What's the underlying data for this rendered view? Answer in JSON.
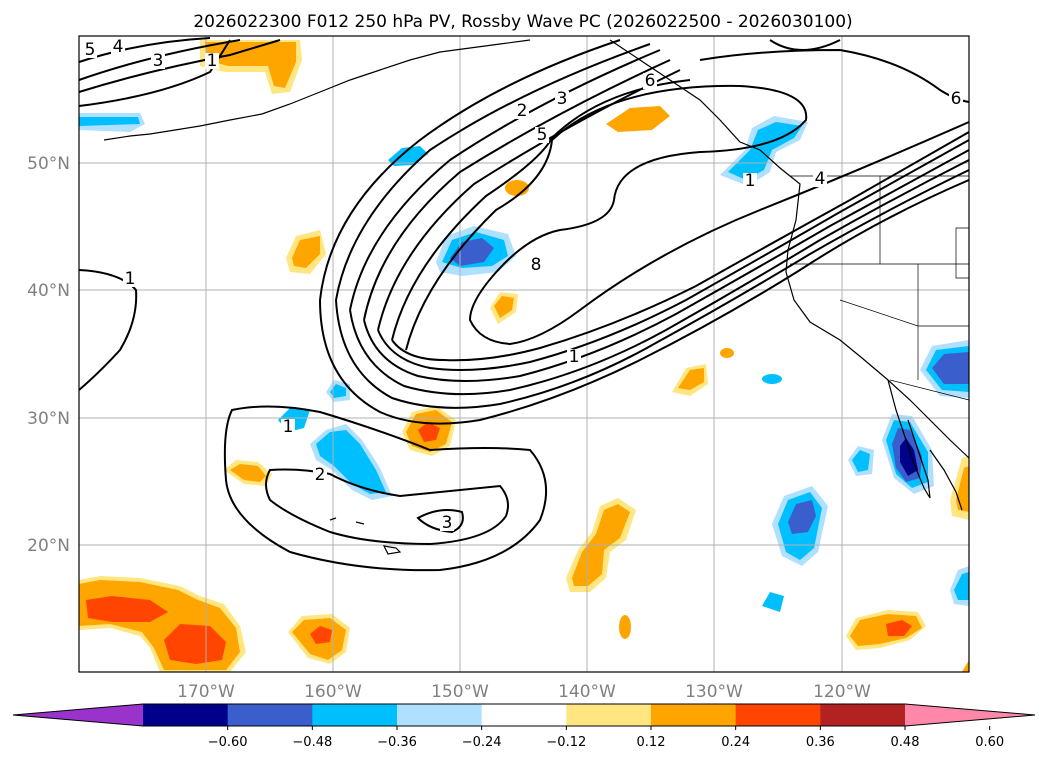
{
  "chart_data": {
    "type": "contour-map",
    "title": "2026022300 F012 250 hPa PV, Rossby Wave PC (2026022500 - 2026030100)",
    "map_extent": {
      "lon": [
        -180,
        -110
      ],
      "lat": [
        10,
        60
      ]
    },
    "gridlines": true,
    "lat_ticks": [
      "20°N",
      "30°N",
      "40°N",
      "50°N"
    ],
    "lon_ticks": [
      "170°W",
      "160°W",
      "150°W",
      "140°W",
      "130°W",
      "120°W"
    ],
    "pv_contour_labels": [
      "5",
      "4",
      "3",
      "1",
      "2",
      "3",
      "6",
      "5",
      "8",
      "1",
      "1",
      "1",
      "4",
      "6",
      "1",
      "2",
      "3"
    ],
    "colorbar": {
      "levels": [
        -0.72,
        -0.6,
        -0.48,
        -0.36,
        -0.24,
        -0.12,
        0.12,
        0.24,
        0.36,
        0.48,
        0.6,
        0.72
      ],
      "colors": [
        "#9933cc",
        "#00008b",
        "#3a5fcd",
        "#00bfff",
        "#b0e0ff",
        "#ffffff",
        "#ffe680",
        "#ffa500",
        "#ff4500",
        "#b22222",
        "#ff88aa"
      ],
      "tick_labels": [
        "−0.60",
        "−0.48",
        "−0.36",
        "−0.24",
        "−0.12",
        "0.12",
        "0.24",
        "0.36",
        "0.48",
        "0.60"
      ],
      "extend": "both"
    }
  }
}
